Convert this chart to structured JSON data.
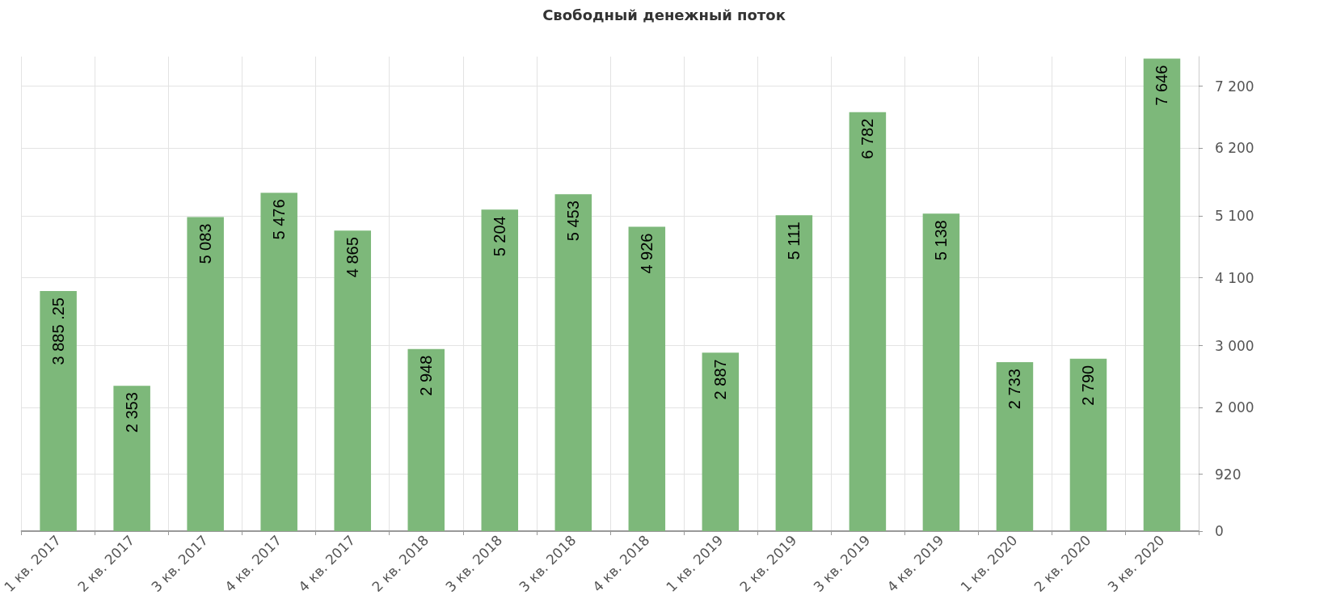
{
  "chart_data": {
    "type": "bar",
    "title": "Свободный денежный поток",
    "categories": [
      "1 кв. 2017",
      "2 кв. 2017",
      "3 кв. 2017",
      "4 кв. 2017",
      "4 кв. 2017",
      "2 кв. 2018",
      "3 кв. 2018",
      "3 кв. 2018",
      "4 кв. 2018",
      "1 кв. 2019",
      "2 кв. 2019",
      "3 кв. 2019",
      "4 кв. 2019",
      "1 кв. 2020",
      "2 кв. 2020",
      "3 кв. 2020"
    ],
    "values": [
      3885.25,
      2353,
      5083,
      5476,
      4865,
      2948,
      5204,
      5453,
      4926,
      2887,
      5111,
      6782,
      5138,
      2733,
      2790,
      7646
    ],
    "value_labels": [
      "3 885 .25",
      "2 353",
      "5 083",
      "5 476",
      "4 865",
      "2 948",
      "5 204",
      "5 453",
      "4 926",
      "2 887",
      "5 111",
      "6 782",
      "5 138",
      "2 733",
      "2 790",
      "7 646"
    ],
    "color": "#7db87a",
    "ylim": [
      0,
      7680
    ],
    "yticks": [
      0,
      920,
      {
        "value": 2000,
        "label": "2 000"
      },
      {
        "value": 3000,
        "label": "3 000"
      },
      {
        "value": 4100,
        "label": "4 100"
      },
      {
        "value": 5100,
        "label": "5 100"
      },
      {
        "value": 6200,
        "label": "6 200"
      },
      {
        "value": 7200,
        "label": "7 200"
      }
    ],
    "grid": true
  }
}
